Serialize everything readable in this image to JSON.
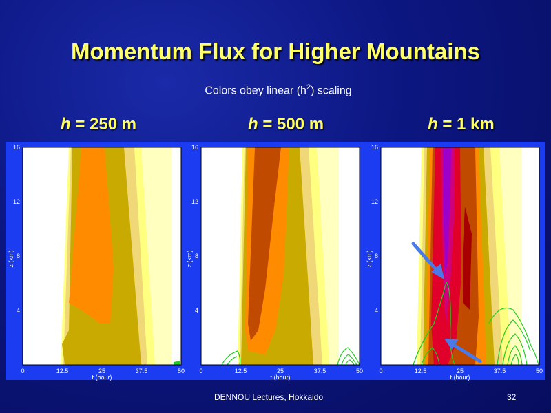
{
  "slide": {
    "title": "Momentum Flux for Higher Mountains",
    "subtitle_prefix": "Colors obey linear (h",
    "subtitle_sup": "2",
    "subtitle_suffix": ") scaling",
    "footer": "DENNOU Lectures, Hokkaido",
    "page_number": "32"
  },
  "panels": [
    {
      "label_var": "h",
      "label_rest": " = 250 m"
    },
    {
      "label_var": "h",
      "label_rest": " = 500 m"
    },
    {
      "label_var": "h",
      "label_rest": " = 1 km"
    }
  ],
  "axes": {
    "xlabel": "t (hour)",
    "ylabel": "z (km)",
    "xticks": [
      "0",
      "12.5",
      "25",
      "37.5",
      "50"
    ],
    "yticks": [
      "4",
      "8",
      "12",
      "16"
    ]
  },
  "colors": {
    "background": "#0c1680",
    "title": "#ffff66",
    "strip": "#1b3cf0",
    "arrow": "#4a7ae8",
    "contour_green": "#22cc22"
  }
}
